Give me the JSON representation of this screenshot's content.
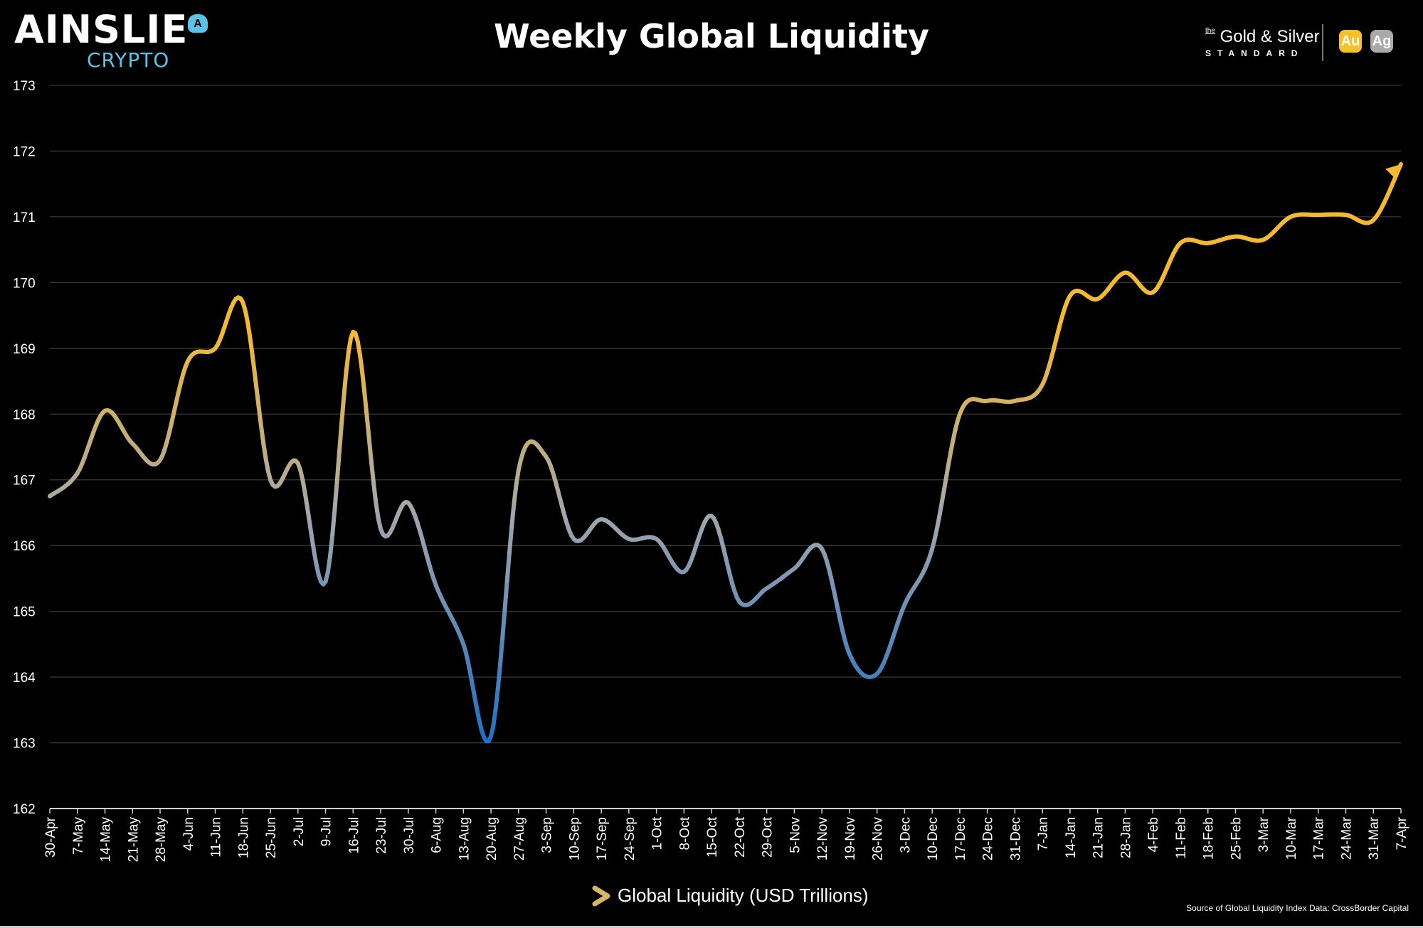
{
  "header": {
    "logo_text": "AINSLIE",
    "logo_sub": "CRYPTO",
    "logo_badge": "A",
    "partner_the": "the",
    "partner_name": "Gold & Silver",
    "partner_sub": "STANDARD",
    "gold_icon": "Au",
    "silver_icon": "Ag"
  },
  "chart_data": {
    "type": "line",
    "title": "Weekly Global Liquidity",
    "xlabel": "",
    "ylabel": "",
    "ylim": [
      162,
      173
    ],
    "yticks": [
      "162",
      "163",
      "164",
      "165",
      "166",
      "167",
      "168",
      "169",
      "170",
      "171",
      "172",
      "173"
    ],
    "grid": "horizontal",
    "legend": "bottom-center",
    "categories": [
      "30-Apr",
      "7-May",
      "14-May",
      "21-May",
      "28-May",
      "4-Jun",
      "11-Jun",
      "18-Jun",
      "25-Jun",
      "2-Jul",
      "9-Jul",
      "16-Jul",
      "23-Jul",
      "30-Jul",
      "6-Aug",
      "13-Aug",
      "20-Aug",
      "27-Aug",
      "3-Sep",
      "10-Sep",
      "17-Sep",
      "24-Sep",
      "1-Oct",
      "8-Oct",
      "15-Oct",
      "22-Oct",
      "29-Oct",
      "5-Nov",
      "12-Nov",
      "19-Nov",
      "26-Nov",
      "3-Dec",
      "10-Dec",
      "17-Dec",
      "24-Dec",
      "31-Dec",
      "7-Jan",
      "14-Jan",
      "21-Jan",
      "28-Jan",
      "4-Feb",
      "11-Feb",
      "18-Feb",
      "25-Feb",
      "3-Mar",
      "10-Mar",
      "17-Mar",
      "24-Mar",
      "31-Mar",
      "7-Apr"
    ],
    "series": [
      {
        "name": "Global Liquidity (USD Trillions)",
        "values": [
          166.75,
          167.1,
          168.05,
          167.55,
          167.3,
          168.8,
          169.0,
          169.7,
          167.0,
          167.25,
          165.45,
          169.25,
          166.25,
          166.65,
          165.4,
          164.5,
          163.1,
          167.15,
          167.35,
          166.1,
          166.4,
          166.1,
          166.1,
          165.6,
          166.45,
          165.15,
          165.35,
          165.65,
          165.95,
          164.35,
          164.05,
          165.1,
          165.95,
          168.0,
          168.2,
          168.2,
          168.45,
          169.8,
          169.75,
          170.15,
          169.85,
          170.6,
          170.6,
          170.7,
          170.65,
          171.0,
          171.03,
          171.03,
          170.95,
          171.8
        ]
      }
    ],
    "colors": {
      "low": "#1f6fc4",
      "mid": "#a3a7ab",
      "high": "#f5b92e"
    }
  },
  "footer": {
    "legend_label": "Global Liquidity (USD Trillions)",
    "source": "Source of Global Liquidity Index Data: CrossBorder Capital"
  }
}
